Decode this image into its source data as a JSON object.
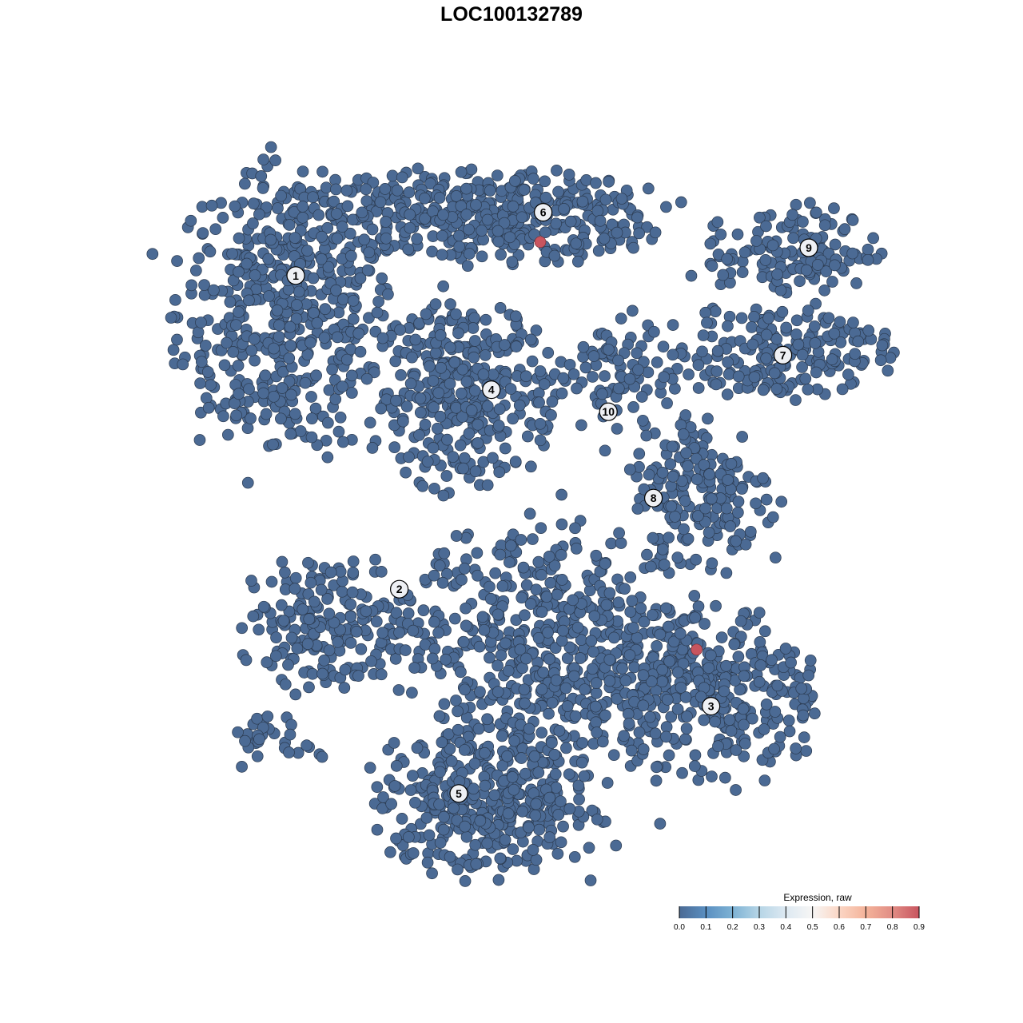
{
  "chart_data": {
    "type": "scatter",
    "title": "LOC100132789",
    "xlabel": "",
    "ylabel": "",
    "grid": false,
    "axes_visible": false,
    "xlim": [
      -37,
      42
    ],
    "ylim": [
      -38,
      38
    ],
    "point_fill_default": "#4b6a94",
    "point_stroke": "#2b3a4f",
    "colorbar": {
      "title": "Expression, raw",
      "ticks": [
        "0.0",
        "0.1",
        "0.2",
        "0.3",
        "0.4",
        "0.5",
        "0.6",
        "0.7",
        "0.8",
        "0.9"
      ],
      "range": [
        0,
        0.9
      ],
      "stops": [
        {
          "value": 0.0,
          "color": "#4b6a94"
        },
        {
          "value": 0.1,
          "color": "#5a8fc1"
        },
        {
          "value": 0.2,
          "color": "#7db2d4"
        },
        {
          "value": 0.3,
          "color": "#b6d5e6"
        },
        {
          "value": 0.4,
          "color": "#dde9f2"
        },
        {
          "value": 0.5,
          "color": "#f7f6f5"
        },
        {
          "value": 0.6,
          "color": "#fbd6c4"
        },
        {
          "value": 0.7,
          "color": "#f4b39a"
        },
        {
          "value": 0.8,
          "color": "#e18c84"
        },
        {
          "value": 0.9,
          "color": "#c8555f"
        }
      ],
      "placement": "bottom-right"
    },
    "clusters": [
      {
        "label": "1",
        "label_xy": [
          -22.5,
          24.6
        ],
        "center": [
          -23.3,
          20.8
        ],
        "spread": [
          5.8,
          7.5
        ],
        "n": 520
      },
      {
        "label": "6",
        "label_xy": [
          3.3,
          31.2
        ],
        "center": [
          -3.3,
          30.8
        ],
        "spread": [
          9.5,
          2.6
        ],
        "n": 420
      },
      {
        "label": "4",
        "label_xy": [
          -2.1,
          12.7
        ],
        "center": [
          -5.0,
          12.5
        ],
        "spread": [
          4.8,
          4.8
        ],
        "n": 330
      },
      {
        "label": "10",
        "label_xy": [
          10.1,
          10.4
        ],
        "center": [
          10.8,
          13.8
        ],
        "spread": [
          3.0,
          3.5
        ],
        "n": 80
      },
      {
        "label": "7",
        "label_xy": [
          28.3,
          16.3
        ],
        "center": [
          27.5,
          16.5
        ],
        "spread": [
          6.0,
          2.5
        ],
        "n": 200
      },
      {
        "label": "9",
        "label_xy": [
          31.0,
          27.5
        ],
        "center": [
          29.2,
          27.1
        ],
        "spread": [
          4.5,
          2.4
        ],
        "n": 130
      },
      {
        "label": "8",
        "label_xy": [
          14.8,
          1.4
        ],
        "center": [
          20.0,
          2.0
        ],
        "spread": [
          3.8,
          4.5
        ],
        "n": 180
      },
      {
        "label": "2",
        "label_xy": [
          -11.7,
          -8.1
        ],
        "center": [
          -19.2,
          -11.7
        ],
        "spread": [
          4.5,
          3.5
        ],
        "n": 190
      },
      {
        "label": "",
        "label_xy": null,
        "center": [
          3.3,
          -13.3
        ],
        "spread": [
          7.5,
          6.0
        ],
        "n": 520
      },
      {
        "label": "3",
        "label_xy": [
          20.8,
          -20.3
        ],
        "center": [
          20.8,
          -19.2
        ],
        "spread": [
          6.0,
          4.5
        ],
        "n": 330
      },
      {
        "label": "5",
        "label_xy": [
          -5.5,
          -29.4
        ],
        "center": [
          -2.5,
          -30.0
        ],
        "spread": [
          6.0,
          4.0
        ],
        "n": 400
      },
      {
        "label": "",
        "label_xy": null,
        "center": [
          -24.2,
          -23.8
        ],
        "spread": [
          2.5,
          1.5
        ],
        "n": 30
      }
    ],
    "expressing_points": [
      {
        "x": 3.0,
        "y": 28.1,
        "value": 0.9
      },
      {
        "x": 19.3,
        "y": -14.4,
        "value": 0.9
      }
    ]
  }
}
